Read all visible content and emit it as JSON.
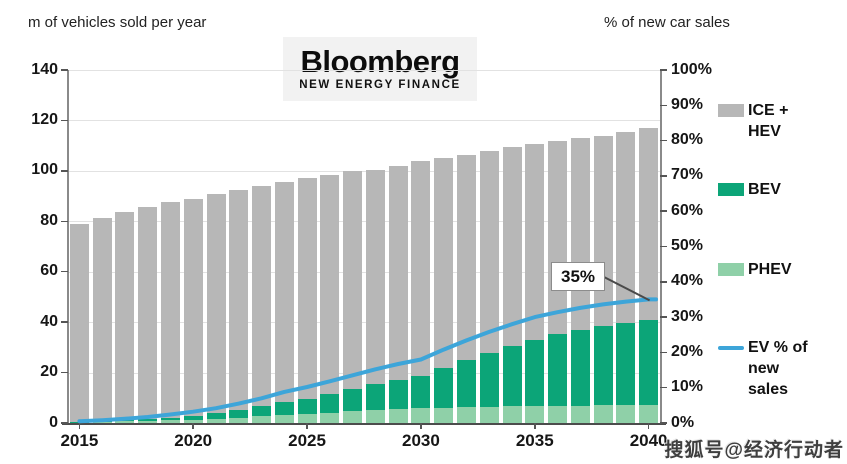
{
  "titles": {
    "left_axis": "m of vehicles sold per year",
    "right_axis": "% of new car sales"
  },
  "logo": {
    "name": "Bloomberg",
    "subtitle": "NEW ENERGY FINANCE"
  },
  "annotation": {
    "label": "35%",
    "target_year": 2040,
    "target_value_pct": 35
  },
  "watermark": {
    "text": "搜狐号@经济行动者"
  },
  "legend": {
    "items": [
      {
        "id": "ice-hev",
        "label": "ICE + HEV",
        "swatch": "#b7b7b7",
        "kind": "box"
      },
      {
        "id": "bev",
        "label": "BEV",
        "swatch": "#0ca578",
        "kind": "box"
      },
      {
        "id": "phev",
        "label": "PHEV",
        "swatch": "#8fd0a8",
        "kind": "box"
      },
      {
        "id": "ev-share",
        "label": "EV % of new sales",
        "swatch": "#3da5d9",
        "kind": "line"
      }
    ]
  },
  "colors": {
    "ice_hev": "#b7b7b7",
    "bev": "#0ca578",
    "phev": "#8fd0a8",
    "line": "#3da5d9",
    "grid": "#e2e2e2",
    "axis": "#8a8a8a",
    "text": "#161616"
  },
  "chart_data": {
    "type": "bar",
    "subtype": "stacked-bars-with-right-axis-line",
    "x": [
      2015,
      2016,
      2017,
      2018,
      2019,
      2020,
      2021,
      2022,
      2023,
      2024,
      2025,
      2026,
      2027,
      2028,
      2029,
      2030,
      2031,
      2032,
      2033,
      2034,
      2035,
      2036,
      2037,
      2038,
      2039,
      2040
    ],
    "series": [
      {
        "name": "PHEV",
        "stack_position": "bottom",
        "color": "#8fd0a8",
        "values": [
          0.3,
          0.5,
          0.7,
          0.9,
          1.1,
          1.4,
          1.8,
          2.2,
          2.6,
          3.1,
          3.6,
          4.1,
          4.6,
          5.0,
          5.4,
          5.8,
          6.0,
          6.2,
          6.4,
          6.6,
          6.7,
          6.8,
          6.9,
          7.0,
          7.0,
          7.0
        ]
      },
      {
        "name": "BEV",
        "stack_position": "middle",
        "color": "#0ca578",
        "values": [
          0.1,
          0.2,
          0.4,
          0.6,
          1.0,
          1.5,
          2.1,
          3.0,
          4.0,
          5.3,
          6.1,
          7.6,
          9.0,
          10.3,
          11.7,
          13.0,
          15.9,
          18.7,
          21.4,
          24.1,
          26.4,
          28.4,
          30.0,
          31.4,
          32.8,
          34.0
        ]
      },
      {
        "name": "ICE + HEV",
        "stack_position": "top",
        "color": "#b7b7b7",
        "values": [
          78.6,
          80.8,
          82.4,
          84.0,
          85.4,
          86.1,
          87.1,
          87.3,
          87.4,
          87.1,
          87.3,
          86.8,
          86.4,
          85.2,
          84.9,
          85.2,
          83.1,
          81.6,
          80.2,
          78.8,
          77.4,
          76.8,
          76.1,
          75.6,
          75.7,
          76.0
        ]
      }
    ],
    "line_series": {
      "name": "EV % of new sales",
      "axis": "right",
      "unit": "%",
      "color": "#3da5d9",
      "values": [
        0.5,
        0.8,
        1.2,
        1.7,
        2.4,
        3.2,
        4.2,
        5.5,
        7.0,
        8.8,
        10.2,
        11.8,
        13.5,
        15.2,
        16.7,
        18.0,
        20.8,
        23.4,
        25.8,
        28.0,
        30.0,
        31.4,
        32.6,
        33.6,
        34.4,
        35.0
      ]
    },
    "left_axis": {
      "label": "m of vehicles sold per year",
      "min": 0,
      "max": 140,
      "step": 20
    },
    "right_axis": {
      "label": "% of new car sales",
      "min": 0,
      "max": 100,
      "step": 10,
      "tick_suffix": "%"
    },
    "x_tick_labels": [
      "2015",
      "2020",
      "2025",
      "2030",
      "2035",
      "2040"
    ],
    "grid": true,
    "legend_position": "right",
    "annotations": [
      {
        "text": "35%",
        "x": 2040,
        "y_pct": 35
      }
    ]
  }
}
